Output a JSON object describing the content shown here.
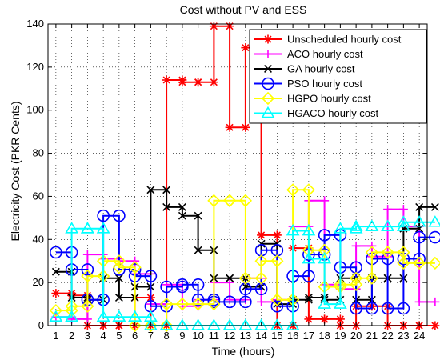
{
  "chart_data": {
    "type": "line",
    "step": true,
    "title": "Cost without PV and ESS",
    "xlabel": "Time (hours)",
    "ylabel": "Electricity Cost (PKR Cents)",
    "xlim": [
      0.5,
      24.5
    ],
    "ylim": [
      0,
      140
    ],
    "xticks": [
      1,
      2,
      3,
      4,
      5,
      6,
      7,
      8,
      9,
      10,
      11,
      12,
      13,
      14,
      15,
      16,
      17,
      18,
      19,
      20,
      21,
      22,
      23,
      24
    ],
    "yticks": [
      0,
      20,
      40,
      60,
      80,
      100,
      120,
      140
    ],
    "grid": true,
    "legend_position": "top-right",
    "x": [
      1,
      2,
      3,
      4,
      5,
      6,
      7,
      8,
      9,
      10,
      11,
      12,
      13,
      14,
      15,
      16,
      17,
      18,
      19,
      20,
      21,
      22,
      23,
      24
    ],
    "series": [
      {
        "name": "Unscheduled hourly cost",
        "color": "#ff0000",
        "marker": "asterisk",
        "values": [
          15,
          14,
          0,
          0,
          0,
          13,
          0,
          114,
          113,
          113,
          139,
          92,
          129,
          42,
          0,
          36,
          3,
          3,
          0,
          9,
          9,
          0,
          0,
          0
        ]
      },
      {
        "name": "ACO hourly cost",
        "color": "#ff00ff",
        "marker": "plus",
        "values": [
          4,
          3,
          33,
          31,
          30,
          24,
          10,
          19,
          9,
          12,
          20,
          12,
          22,
          11,
          12,
          46,
          58,
          19,
          17,
          37,
          32,
          54,
          46,
          11
        ]
      },
      {
        "name": "GA hourly cost",
        "color": "#000000",
        "marker": "x",
        "values": [
          25,
          13,
          12,
          22,
          13,
          18,
          63,
          55,
          51,
          35,
          22,
          22,
          18,
          38,
          10,
          12,
          13,
          12,
          22,
          12,
          22,
          22,
          45,
          55
        ]
      },
      {
        "name": "PSO hourly cost",
        "color": "#0000ff",
        "marker": "circle",
        "values": [
          34,
          26,
          12,
          51,
          26,
          23,
          9,
          18,
          19,
          12,
          11,
          11,
          17,
          35,
          9,
          23,
          33,
          42,
          27,
          8,
          31,
          8,
          31,
          41
        ]
      },
      {
        "name": "HGPO hourly cost",
        "color": "#ffff00",
        "marker": "diamond",
        "values": [
          7,
          9,
          23,
          30,
          27,
          0,
          0,
          10,
          10,
          10,
          58,
          58,
          22,
          30,
          12,
          63,
          35,
          18,
          19,
          22,
          34,
          34,
          29,
          29
        ]
      },
      {
        "name": "HGACO hourly cost",
        "color": "#00ffff",
        "marker": "triangle",
        "values": [
          4,
          45,
          45,
          4,
          4,
          4,
          0,
          0,
          0,
          0,
          0,
          0,
          0,
          0,
          0,
          44,
          31,
          10,
          45,
          46,
          46,
          46,
          48,
          48
        ]
      }
    ]
  }
}
